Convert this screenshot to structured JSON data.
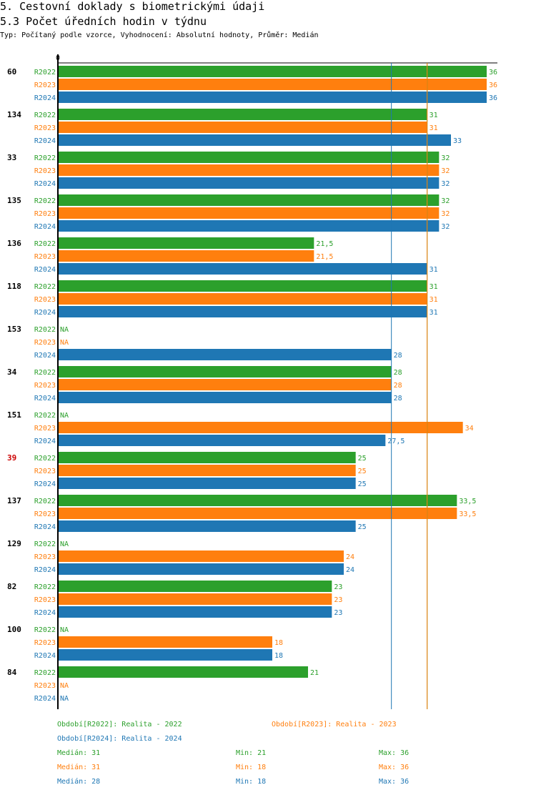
{
  "header": {
    "title": "5. Cestovní doklady s biometrickými údaji",
    "subtitle": "5.3 Počet úředních hodin v týdnu",
    "info": "Typ: Počítaný podle vzorce, Vyhodnocení: Absolutní hodnoty, Průměr: Medián"
  },
  "colors": {
    "R2022": "#2ca02c",
    "R2023": "#ff7f0e",
    "R2024": "#1f77b4"
  },
  "chart_data": {
    "type": "bar",
    "orientation": "horizontal",
    "title": "5.3 Počet úředních hodin v týdnu",
    "xlabel": "",
    "ylabel": "",
    "x_tick_labels": [
      "0"
    ],
    "xlim": [
      0,
      36
    ],
    "series_names": [
      "R2022",
      "R2023",
      "R2024"
    ],
    "categories": [
      "60",
      "134",
      "33",
      "135",
      "136",
      "118",
      "153",
      "34",
      "151",
      "39",
      "137",
      "129",
      "82",
      "100",
      "84"
    ],
    "highlighted_category": "39",
    "series": [
      {
        "name": "R2022",
        "values": [
          36,
          31,
          32,
          32,
          21.5,
          31,
          null,
          28,
          null,
          25,
          33.5,
          null,
          23,
          null,
          21
        ]
      },
      {
        "name": "R2023",
        "values": [
          36,
          31,
          32,
          32,
          21.5,
          31,
          null,
          28,
          34,
          25,
          33.5,
          24,
          23,
          18,
          null
        ]
      },
      {
        "name": "R2024",
        "values": [
          36,
          33,
          32,
          32,
          31,
          31,
          28,
          28,
          27.5,
          25,
          25,
          24,
          23,
          18,
          null
        ]
      }
    ],
    "value_labels": {
      "R2022": [
        "36",
        "31",
        "32",
        "32",
        "21,5",
        "31",
        "NA",
        "28",
        "NA",
        "25",
        "33,5",
        "NA",
        "23",
        "NA",
        "21"
      ],
      "R2023": [
        "36",
        "31",
        "32",
        "32",
        "21,5",
        "31",
        "NA",
        "28",
        "34",
        "25",
        "33,5",
        "24",
        "23",
        "18",
        "NA"
      ],
      "R2024": [
        "36",
        "33",
        "32",
        "32",
        "31",
        "31",
        "28",
        "28",
        "27,5",
        "25",
        "25",
        "24",
        "23",
        "18",
        "NA"
      ]
    },
    "reference_lines": [
      {
        "series": "R2022",
        "type": "median",
        "value": 31
      },
      {
        "series": "R2023",
        "type": "median",
        "value": 31
      },
      {
        "series": "R2024",
        "type": "median",
        "value": 28
      }
    ],
    "legend": {
      "placement": "bottom",
      "entries": [
        {
          "series": "R2022",
          "label": "Období[R2022]: Realita - 2022"
        },
        {
          "series": "R2023",
          "label": "Období[R2023]: Realita - 2023"
        },
        {
          "series": "R2024",
          "label": "Období[R2024]: Realita - 2024"
        }
      ]
    },
    "stats": [
      {
        "series": "R2022",
        "median": "Medián: 31",
        "min": "Min: 21",
        "max": "Max: 36"
      },
      {
        "series": "R2023",
        "median": "Medián: 31",
        "min": "Min: 18",
        "max": "Max: 36"
      },
      {
        "series": "R2024",
        "median": "Medián: 28",
        "min": "Min: 18",
        "max": "Max: 36"
      }
    ]
  }
}
